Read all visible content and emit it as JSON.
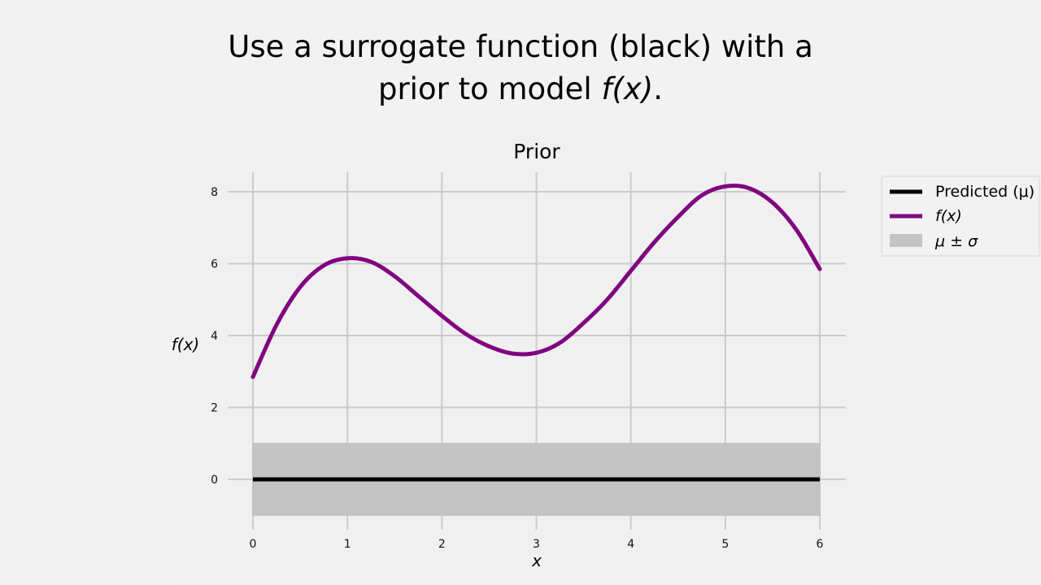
{
  "slide": {
    "title_line1": "Use a surrogate function (black) with a",
    "title_line2_prefix": "prior to model ",
    "title_line2_italic": "f(x)",
    "title_line2_suffix": "."
  },
  "chart_data": {
    "type": "line",
    "title": "Prior",
    "xlabel": "x",
    "ylabel": "f(x)",
    "xlim": [
      0,
      6.25
    ],
    "ylim": [
      -1.6,
      8.6
    ],
    "xticks": [
      0,
      1,
      2,
      3,
      4,
      5,
      6
    ],
    "yticks": [
      0,
      2,
      4,
      6,
      8
    ],
    "grid": true,
    "legend_position": "outside-top-right",
    "colors": {
      "predicted": "#000000",
      "fx": "#800080",
      "band": "#c4c4c4",
      "grid": "#cbcbcb",
      "plot_bg": "#f0f0f0"
    },
    "legend": [
      {
        "key": "predicted",
        "label": "Predicted (μ)"
      },
      {
        "key": "fx",
        "label": "f(x)"
      },
      {
        "key": "band",
        "label": "μ ± σ"
      }
    ],
    "series": [
      {
        "key": "fx",
        "x": [
          0,
          0.25,
          0.5,
          0.75,
          1.0,
          1.25,
          1.5,
          1.75,
          2.0,
          2.25,
          2.5,
          2.75,
          3.0,
          3.25,
          3.5,
          3.75,
          4.0,
          4.25,
          4.5,
          4.75,
          5.0,
          5.25,
          5.5,
          5.75,
          6.0
        ],
        "y": [
          2.85,
          4.3,
          5.35,
          5.95,
          6.15,
          6.05,
          5.65,
          5.1,
          4.55,
          4.05,
          3.7,
          3.5,
          3.52,
          3.8,
          4.35,
          5.0,
          5.8,
          6.6,
          7.3,
          7.9,
          8.15,
          8.1,
          7.7,
          6.95,
          5.85
        ]
      },
      {
        "key": "predicted",
        "x": [
          0,
          6
        ],
        "y": [
          0,
          0
        ]
      }
    ],
    "band": {
      "key": "band",
      "x": [
        0,
        6
      ],
      "lower": [
        -1,
        -1
      ],
      "upper": [
        1,
        1
      ]
    }
  }
}
